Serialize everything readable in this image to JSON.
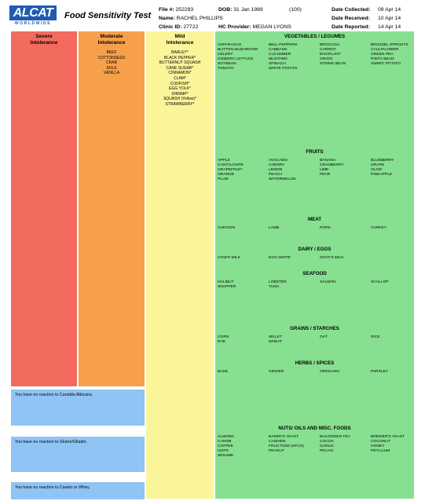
{
  "header": {
    "logo_text": "ALCAT",
    "logo_sub": "WORLDWIDE",
    "report_title": "Food Sensitivity Test",
    "file_label": "File #:",
    "file_value": "252293",
    "dob_label": "DOB:",
    "dob_value": "31 Jan 1989",
    "code_value": "(100)",
    "name_label": "Name:",
    "name_value": "RACHEL PHILLIPS",
    "clinic_label": "Clinic ID:",
    "clinic_value": "27722",
    "provider_label": "HC Provider:",
    "provider_value": "MEGAN LYONS",
    "collected_label": "Date Collected:",
    "collected_value": "09 Apr 14",
    "received_label": "Date Received:",
    "received_value": "10 Apr 14",
    "reported_label": "Date Reported:",
    "reported_value": "14 Apr 14"
  },
  "columns": {
    "severe": {
      "title_1": "Severe",
      "title_2": "Intolerance",
      "items": []
    },
    "moderate": {
      "title_1": "Moderate",
      "title_2": "Intolerance",
      "items": [
        "BEEF",
        "COTTONSEED",
        "CRAB",
        "SOLE",
        "VANILLA"
      ]
    },
    "mild": {
      "title_1": "Mild",
      "title_2": "Intolerance",
      "items": [
        "BARLEY*",
        "BLACK PEPPER*",
        "BUTTERNUT SQUASH",
        "CANE SUGAR*",
        "CINNAMON*",
        "CLAM*",
        "CODFISH*",
        "EGG YOLK*",
        "SHRIMP*",
        "SQUASH (Yellow)*",
        "STRAWBERRY*"
      ]
    }
  },
  "notes": {
    "candida": "You have no reaction to Candida Albicans.",
    "gluten": "You have no reaction to Gluten/Gliadin.",
    "casein": "You have no reaction to Casein or Whey."
  },
  "sections": [
    {
      "title": "VEGETABLES / LEGUMES",
      "items": [
        "ASPARAGUS",
        "BELL PEPPERS",
        "BROCCOLI",
        "BRUSSEL SPROUTS",
        "BUTTON MUSHROOM",
        "CABBAGE",
        "CARROT",
        "CAULIFLOWER",
        "CELERY",
        "CUCUMBER",
        "EGGPLANT",
        "GREEN PEA",
        "ICEBERG LETTUCE",
        "MUSTARD",
        "ONION",
        "PINTO BEAN",
        "SOYBEAN",
        "SPINACH",
        "STRING BEAN",
        "SWEET POTATO",
        "TOMATO",
        "WHITE POTATO"
      ]
    },
    {
      "title": "FRUITS",
      "items": [
        "APPLE",
        "AVOCADO",
        "BANANA",
        "BLUEBERRY",
        "CANTALOUPE",
        "CHERRY",
        "CRANBERRY",
        "GRAPE",
        "GRAPEFRUIT",
        "LEMON",
        "LIME",
        "OLIVE",
        "ORANGE",
        "PEACH",
        "PEAR",
        "PINEAPPLE",
        "PLUM",
        "WATERMELON"
      ]
    },
    {
      "title": "MEAT",
      "items": [
        "CHICKEN",
        "LAMB",
        "PORK",
        "TURKEY"
      ]
    },
    {
      "title": "DAIRY / EGGS",
      "items": [
        "COW'S MILK",
        "EGG WHITE",
        "GOAT'S MILK"
      ]
    },
    {
      "title": "SEAFOOD",
      "items": [
        "HALIBUT",
        "LOBSTER",
        "SALMON",
        "SCALLOP",
        "SNAPPER",
        "TUNA"
      ]
    },
    {
      "title": "GRAINS / STARCHES",
      "items": [
        "CORN",
        "MILLET",
        "OAT",
        "RICE",
        "RYE",
        "WHEAT"
      ]
    },
    {
      "title": "HERBS / SPICES",
      "items": [
        "BASIL",
        "GINGER",
        "OREGANO",
        "PARSLEY"
      ]
    },
    {
      "title": "NUTS/ OILS AND MISC. FOODS",
      "items": [
        "ALMOND",
        "BAKER'S YEAST",
        "BLK/GREEN TEA",
        "BREWER'S YEAST",
        "CAROB",
        "CASHEW",
        "COCOA",
        "COCONUT",
        "COFFEE",
        "FRUCTOSE (HFCS)",
        "GARLIC",
        "HONEY",
        "HOPS",
        "PEANUT",
        "PECAN",
        "PSYLLIUM",
        "SESAME"
      ]
    }
  ]
}
